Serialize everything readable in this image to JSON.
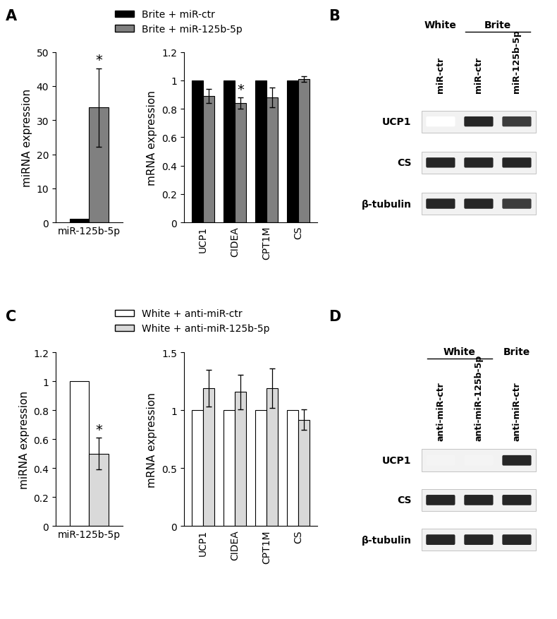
{
  "panel_labels": [
    "A",
    "B",
    "C",
    "D"
  ],
  "chart_data": [
    {
      "type": "bar",
      "y_label": "miRNA expression",
      "categories": [
        "miR-125b-5p"
      ],
      "ylim": [
        0,
        50
      ],
      "yticks": [
        0,
        10,
        20,
        30,
        40,
        50
      ],
      "legend": "upper left",
      "series": [
        {
          "name": "Brite + miR-ctr",
          "color": "#000000",
          "values": [
            1
          ]
        },
        {
          "name": "Brite + miR-125b-5p",
          "color": "#808080",
          "values": [
            33.7
          ],
          "errors": [
            11.5
          ],
          "significance": [
            "*"
          ]
        }
      ]
    },
    {
      "type": "bar",
      "y_label": "mRNA expression",
      "categories": [
        "UCP1",
        "CIDEA",
        "CPT1M",
        "CS"
      ],
      "ylim": [
        0,
        1.2
      ],
      "yticks": [
        0,
        0.2,
        0.4,
        0.6,
        0.8,
        1,
        1.2
      ],
      "series": [
        {
          "name": "Brite + miR-ctr",
          "color": "#000000",
          "values": [
            1,
            1,
            1,
            1
          ]
        },
        {
          "name": "Brite + miR-125b-5p",
          "color": "#808080",
          "values": [
            0.89,
            0.84,
            0.88,
            1.01
          ],
          "errors": [
            0.05,
            0.04,
            0.07,
            0.02
          ],
          "significance": [
            null,
            "*",
            null,
            null
          ]
        }
      ]
    },
    {
      "type": "bar",
      "y_label": "miRNA expression",
      "categories": [
        "miR-125b-5p"
      ],
      "ylim": [
        0,
        1.2
      ],
      "yticks": [
        0,
        0.2,
        0.4,
        0.6,
        0.8,
        1,
        1.2
      ],
      "legend": "upper left",
      "series": [
        {
          "name": "White + anti-miR-ctr",
          "color": "#ffffff",
          "values": [
            1
          ]
        },
        {
          "name": "White + anti-miR-125b-5p",
          "color": "#d9d9d9",
          "values": [
            0.5
          ],
          "errors": [
            0.11
          ],
          "significance": [
            "*"
          ]
        }
      ]
    },
    {
      "type": "bar",
      "y_label": "mRNA expression",
      "categories": [
        "UCP1",
        "CIDEA",
        "CPT1M",
        "CS"
      ],
      "ylim": [
        0,
        1.5
      ],
      "yticks": [
        0,
        0.5,
        1,
        1.5
      ],
      "series": [
        {
          "name": "White + anti-miR-ctr",
          "color": "#ffffff",
          "values": [
            1,
            1,
            1,
            1
          ]
        },
        {
          "name": "White + anti-miR-125b-5p",
          "color": "#d9d9d9",
          "values": [
            1.19,
            1.16,
            1.19,
            0.92
          ],
          "errors": [
            0.16,
            0.15,
            0.17,
            0.09
          ]
        }
      ]
    }
  ],
  "blots": [
    {
      "lanes": [
        {
          "label": "miR-ctr",
          "group": "White"
        },
        {
          "label": "miR-ctr",
          "group": "Brite"
        },
        {
          "label": "miR-125b-5p",
          "group": "Brite"
        }
      ],
      "rows": [
        {
          "label": "UCP1",
          "intensity": [
            0,
            1,
            0.9
          ]
        },
        {
          "label": "CS",
          "intensity": [
            1,
            1,
            1
          ]
        },
        {
          "label": "β-tubulin",
          "intensity": [
            1,
            1,
            0.9
          ]
        }
      ]
    },
    {
      "lanes": [
        {
          "label": "anti-miR-ctr",
          "group": "White"
        },
        {
          "label": "anti-miR-125b-5p",
          "group": "White"
        },
        {
          "label": "anti-miR-ctr",
          "group": "Brite"
        }
      ],
      "rows": [
        {
          "label": "UCP1",
          "intensity": [
            0.05,
            0.05,
            1
          ]
        },
        {
          "label": "CS",
          "intensity": [
            1,
            1,
            1
          ]
        },
        {
          "label": "β-tubulin",
          "intensity": [
            1,
            1,
            1
          ]
        }
      ]
    }
  ]
}
